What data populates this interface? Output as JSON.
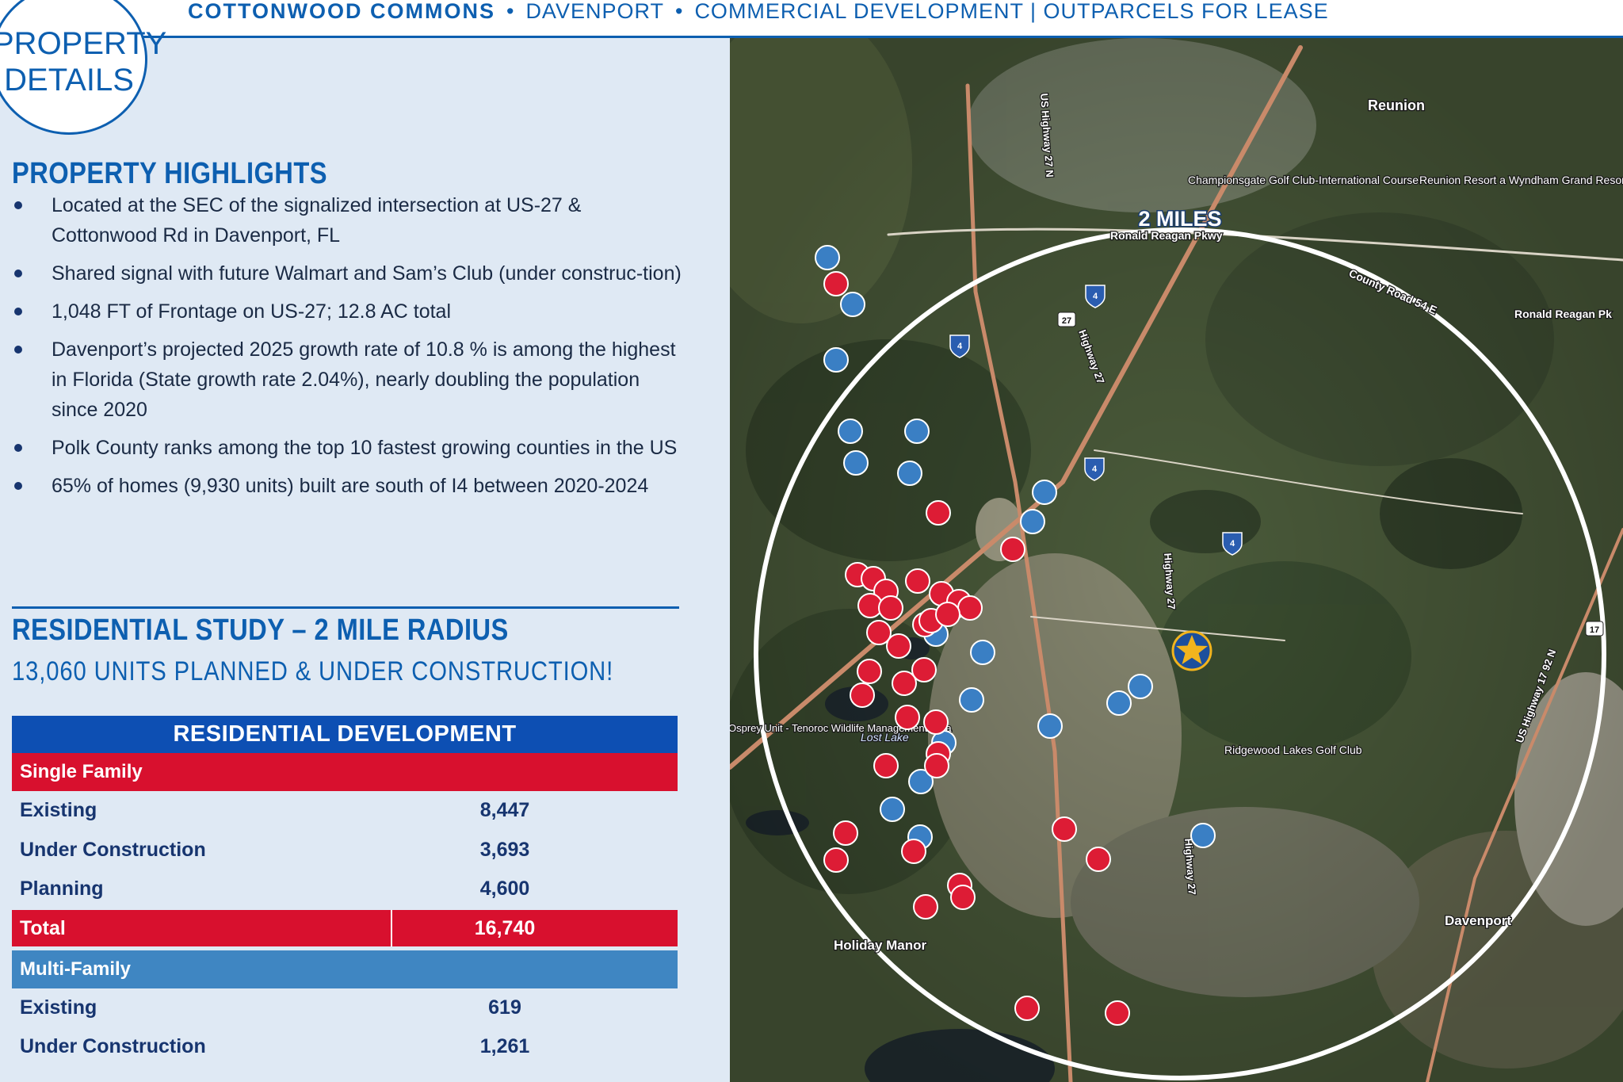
{
  "header": {
    "project": "COTTONWOOD COMMONS",
    "city": "DAVENPORT",
    "descriptor": "COMMERCIAL DEVELOPMENT | OUTPARCELS FOR LEASE",
    "separator": "•"
  },
  "badge": {
    "line1": "PROPERTY",
    "line2": "DETAILS"
  },
  "highlights": {
    "heading": "PROPERTY HIGHLIGHTS",
    "items": [
      "Located at the SEC of the signalized intersection at US-27 & Cottonwood Rd in Davenport, FL",
      "Shared signal with future Walmart and Sam’s Club (under construc-tion)",
      "1,048 FT of Frontage on US-27; 12.8 AC total",
      "Davenport’s projected 2025 growth rate of 10.8 % is among the highest in Florida (State growth rate 2.04%), nearly doubling the population since 2020",
      "Polk County ranks among the top 10 fastest growing counties in the US",
      "65% of homes (9,930 units) built are south of I4 between 2020-2024"
    ]
  },
  "study": {
    "heading": "RESIDENTIAL STUDY – 2 MILE RADIUS",
    "subheading": "13,060 UNITS PLANNED & UNDER CONSTRUCTION!"
  },
  "table": {
    "title": "RESIDENTIAL DEVELOPMENT",
    "single_family": {
      "label": "Single Family",
      "rows": [
        {
          "label": "Existing",
          "value": "8,447"
        },
        {
          "label": "Under Construction",
          "value": "3,693"
        },
        {
          "label": "Planning",
          "value": "4,600"
        }
      ],
      "total_label": "Total",
      "total_value": "16,740"
    },
    "multi_family": {
      "label": "Multi-Family",
      "rows": [
        {
          "label": "Existing",
          "value": "619"
        },
        {
          "label": "Under Construction",
          "value": "1,261"
        }
      ]
    }
  },
  "map": {
    "radius_label": "2 MILES",
    "place_labels": {
      "reunion": "Reunion",
      "championsgate": "Championsgate Golf Club-International Course",
      "reunion_resort": "Reunion Resort a Wyndham Grand Resort",
      "county_road": "County Road 54 E",
      "ronald_reagan": "Ronald Reagan Pkwy",
      "ronald_reagan_right": "Ronald Reagan Pk",
      "highway27_n": "US Highway 27 N",
      "highway27_a": "Highway 27",
      "highway27_b": "Highway 27",
      "highway27_c": "Highway 27",
      "us17": "US Highway 17 92 N",
      "lost_lake": "Lost Lake",
      "osprey": "Osprey Unit - Tenoroc Wildlife Management Area",
      "ridgewood": "Ridgewood Lakes Golf Club",
      "davenport": "Davenport",
      "holiday_manor": "Holiday Manor"
    },
    "shields": {
      "i4": "4",
      "us27": "27",
      "us17": "17"
    },
    "colors": {
      "existing_marker": "#dd1c35",
      "planned_marker": "#3a7fc4",
      "subject_star": "#f2b41d"
    }
  }
}
